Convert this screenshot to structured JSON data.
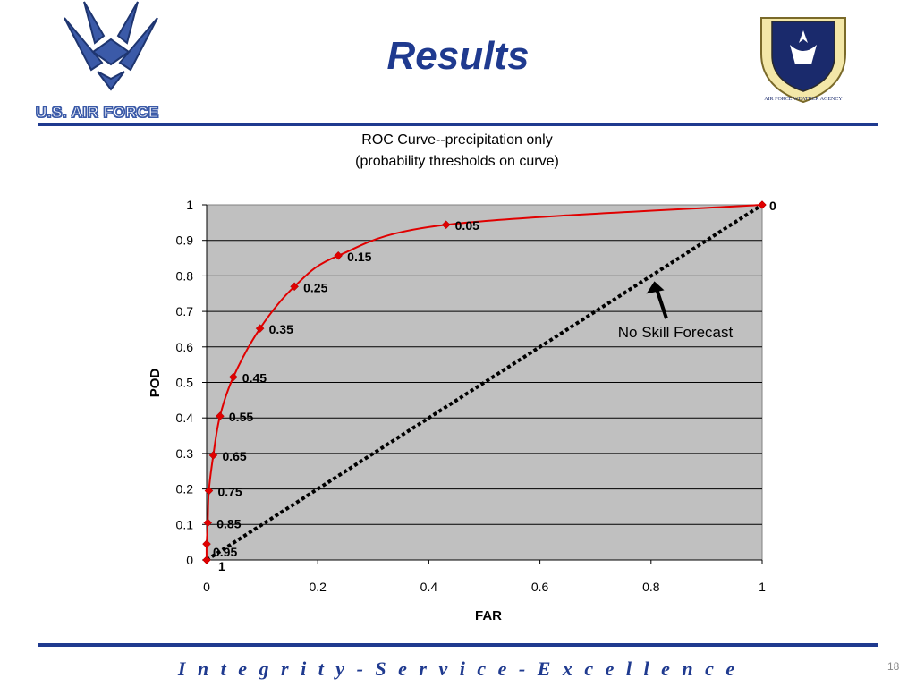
{
  "slide": {
    "title": "Results",
    "brand": "U.S. AIR FORCE",
    "seal_text": "AIR FORCE WEATHER AGENCY",
    "motto": "I n t e g r i t y  -  S e r v i c e  -  E x c e l l e n c e",
    "page_number": "18"
  },
  "colors": {
    "title": "#1f3a8f",
    "rule": "#1f3a8f",
    "plot_bg": "#c0c0c0",
    "curve": "#e00000",
    "no_skill": "#000000"
  },
  "chart_data": {
    "type": "line",
    "title": "ROC Curve--precipitation only",
    "subtitle": "(probability thresholds on curve)",
    "xlabel": "FAR",
    "ylabel": "POD",
    "xlim": [
      0,
      1
    ],
    "ylim": [
      0,
      1
    ],
    "x_ticks": [
      0,
      0.2,
      0.4,
      0.6,
      0.8,
      1
    ],
    "x_tick_labels": [
      "0",
      "0.2",
      "0.4",
      "0.6",
      "0.8",
      "1"
    ],
    "y_ticks": [
      0,
      0.1,
      0.2,
      0.3,
      0.4,
      0.5,
      0.6,
      0.7,
      0.8,
      0.9,
      1
    ],
    "y_tick_labels": [
      "0",
      "0.1",
      "0.2",
      "0.3",
      "0.4",
      "0.5",
      "0.6",
      "0.7",
      "0.8",
      "0.9",
      "1"
    ],
    "grid": true,
    "series": [
      {
        "points": [
          {
            "x": 0.0,
            "y": 0.0,
            "label": "1"
          },
          {
            "x": 0.0,
            "y": 0.045,
            "label": "0.95"
          },
          {
            "x": 0.002,
            "y": 0.105,
            "label": "0.85"
          },
          {
            "x": 0.004,
            "y": 0.195,
            "label": "0.75"
          },
          {
            "x": 0.012,
            "y": 0.295,
            "label": "0.65"
          },
          {
            "x": 0.024,
            "y": 0.405,
            "label": "0.55"
          },
          {
            "x": 0.048,
            "y": 0.515,
            "label": "0.45"
          },
          {
            "x": 0.096,
            "y": 0.652,
            "label": "0.35"
          },
          {
            "x": 0.158,
            "y": 0.77,
            "label": "0.25"
          },
          {
            "x": 0.237,
            "y": 0.857,
            "label": "0.15"
          },
          {
            "x": 0.431,
            "y": 0.944,
            "label": "0.05"
          },
          {
            "x": 1.0,
            "y": 1.0,
            "label": "0"
          }
        ]
      },
      {
        "name": "No Skill Forecast",
        "points": [
          {
            "x": 0,
            "y": 0
          },
          {
            "x": 1,
            "y": 1
          }
        ]
      }
    ],
    "annotation": {
      "text": "No Skill Forecast",
      "arrow_to": {
        "x": 0.806,
        "y": 0.785
      }
    }
  }
}
